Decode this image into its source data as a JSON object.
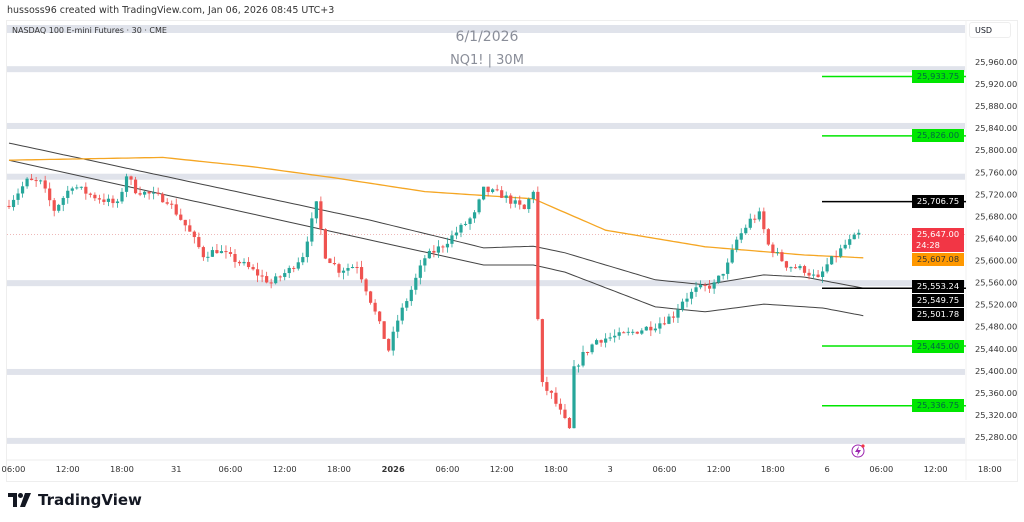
{
  "header": {
    "credit": "hussoss96 created with TradingView.com, Jan 06, 2026 08:45 UTC+3"
  },
  "symbol": {
    "description": "NASDAQ 100 E-mini Futures · 30 · CME"
  },
  "watermark": {
    "date": "6/1/2026",
    "ticker": "NQ1! | 30M"
  },
  "currency": "USD",
  "logo": {
    "text": "TradingView"
  },
  "colors": {
    "up": "#26a69a",
    "down": "#ef5350",
    "ma_orange": "#f5a623",
    "ma_dark": "#444444",
    "zone": "#e0e3eb",
    "green_level": "#00e600",
    "black_level": "#000000",
    "current": "#f23645",
    "orange_label": "#ff9800"
  },
  "chart_data": {
    "type": "candlestick",
    "title": "NQ1! | 30M",
    "ylim": [
      25260,
      25990
    ],
    "y_ticks": [
      25960,
      25920,
      25880,
      25840,
      25800,
      25760,
      25720,
      25680,
      25640,
      25600,
      25560,
      25520,
      25480,
      25440,
      25400,
      25360,
      25320,
      25280
    ],
    "y_tick_labels": [
      "25,960.00",
      "25,920.00",
      "25,880.00",
      "25,840.00",
      "25,800.00",
      "25,760.00",
      "25,720.00",
      "25,680.00",
      "25,640.00",
      "25,600.00",
      "25,560.00",
      "25,520.00",
      "25,480.00",
      "25,440.00",
      "25,400.00",
      "25,360.00",
      "25,320.00",
      "25,280.00"
    ],
    "x_tick_labels": [
      "06:00",
      "12:00",
      "18:00",
      "31",
      "06:00",
      "12:00",
      "18:00",
      "2026",
      "06:00",
      "12:00",
      "18:00",
      "3",
      "06:00",
      "12:00",
      "18:00",
      "6",
      "06:00",
      "12:00",
      "18:00"
    ],
    "bars": 189,
    "close_waypoints": [
      [
        0,
        25704
      ],
      [
        4,
        25744
      ],
      [
        7,
        25741
      ],
      [
        10,
        25692
      ],
      [
        14,
        25737
      ],
      [
        18,
        25719
      ],
      [
        24,
        25701
      ],
      [
        26,
        25755
      ],
      [
        28,
        25728
      ],
      [
        35,
        25710
      ],
      [
        39,
        25664
      ],
      [
        43,
        25610
      ],
      [
        46,
        25619
      ],
      [
        52,
        25592
      ],
      [
        58,
        25559
      ],
      [
        62,
        25583
      ],
      [
        65,
        25610
      ],
      [
        68,
        25701
      ],
      [
        70,
        25610
      ],
      [
        73,
        25583
      ],
      [
        77,
        25592
      ],
      [
        80,
        25528
      ],
      [
        84,
        25438
      ],
      [
        86,
        25492
      ],
      [
        89,
        25547
      ],
      [
        92,
        25605
      ],
      [
        96,
        25628
      ],
      [
        103,
        25683
      ],
      [
        105,
        25728
      ],
      [
        109,
        25719
      ],
      [
        114,
        25692
      ],
      [
        116,
        25728
      ],
      [
        117,
        25492
      ],
      [
        118,
        25374
      ],
      [
        120,
        25356
      ],
      [
        124,
        25293
      ],
      [
        125,
        25402
      ],
      [
        127,
        25429
      ],
      [
        130,
        25456
      ],
      [
        136,
        25465
      ],
      [
        143,
        25483
      ],
      [
        147,
        25501
      ],
      [
        149,
        25528
      ],
      [
        152,
        25547
      ],
      [
        156,
        25556
      ],
      [
        159,
        25592
      ],
      [
        161,
        25637
      ],
      [
        164,
        25673
      ],
      [
        166,
        25683
      ],
      [
        168,
        25628
      ],
      [
        172,
        25592
      ],
      [
        176,
        25583
      ],
      [
        179,
        25565
      ],
      [
        181,
        25592
      ],
      [
        185,
        25628
      ],
      [
        188,
        25647
      ]
    ],
    "ma_orange": [
      [
        0,
        25782
      ],
      [
        34,
        25787
      ],
      [
        54,
        25770
      ],
      [
        72,
        25750
      ],
      [
        92,
        25725
      ],
      [
        116,
        25712
      ],
      [
        132,
        25655
      ],
      [
        154,
        25625
      ],
      [
        176,
        25610
      ],
      [
        189,
        25605
      ]
    ],
    "ma_upper": [
      [
        0,
        25813
      ],
      [
        80,
        25673
      ],
      [
        105,
        25623
      ],
      [
        116,
        25626
      ],
      [
        123,
        25614
      ],
      [
        143,
        25565
      ],
      [
        154,
        25556
      ],
      [
        167,
        25574
      ],
      [
        176,
        25570
      ],
      [
        189,
        25550
      ]
    ],
    "ma_lower": [
      [
        0,
        25782
      ],
      [
        80,
        25637
      ],
      [
        105,
        25592
      ],
      [
        116,
        25592
      ],
      [
        123,
        25579
      ],
      [
        143,
        25516
      ],
      [
        154,
        25507
      ],
      [
        167,
        25521
      ],
      [
        180,
        25514
      ],
      [
        189,
        25500
      ]
    ],
    "zones": [
      25947,
      25844,
      25752,
      25559,
      25398,
      25273
    ],
    "levels": [
      {
        "price": 25933.75,
        "label": "25,933.75",
        "color": "green"
      },
      {
        "price": 25826.0,
        "label": "25,826.00",
        "color": "green"
      },
      {
        "price": 25706.75,
        "label": "25,706.75",
        "color": "black"
      },
      {
        "price": 25549.75,
        "label": "25,549.75",
        "color": "black"
      },
      {
        "price": 25445.0,
        "label": "25,445.00",
        "color": "green"
      },
      {
        "price": 25336.75,
        "label": "25,336.75",
        "color": "green"
      }
    ],
    "current_price": {
      "price": 25647.0,
      "label": "25,647.00",
      "countdown": "24:28"
    },
    "ma_labels": [
      {
        "price": 25607.08,
        "label": "25,607.08",
        "color": "orange"
      },
      {
        "price": 25553.24,
        "label": "25,553.24",
        "color": "black"
      },
      {
        "price": 25501.78,
        "label": "25,501.78",
        "color": "black"
      }
    ]
  }
}
